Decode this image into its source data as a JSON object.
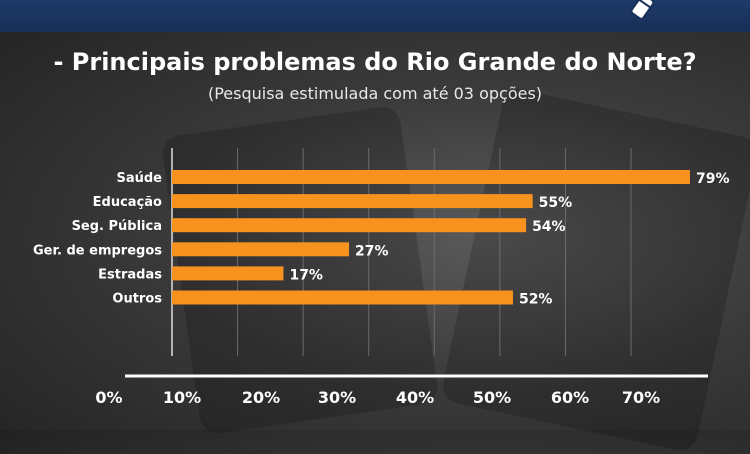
{
  "header": {
    "title": "- Principais problemas do Rio Grande do Norte?",
    "subtitle": "(Pesquisa estimulada com até 03 opções)"
  },
  "icons": {
    "top_right": "pen-icon"
  },
  "colors": {
    "bar": "#f7921e",
    "top_band": "#1e3a6a",
    "text": "#ffffff",
    "grid": "#6b6b6b"
  },
  "chart_data": {
    "type": "bar",
    "orientation": "horizontal",
    "title": "- Principais problemas do Rio Grande do Norte?",
    "subtitle": "(Pesquisa estimulada com até 03 opções)",
    "categories": [
      "Saúde",
      "Educação",
      "Seg. Pública",
      "Ger. de empregos",
      "Estradas",
      "Outros"
    ],
    "values": [
      79,
      55,
      54,
      27,
      17,
      52
    ],
    "value_labels": [
      "79%",
      "55%",
      "54%",
      "27%",
      "17%",
      "52%"
    ],
    "x_ticks": [
      "0%",
      "10%",
      "20%",
      "30%",
      "40%",
      "50%",
      "60%",
      "70%"
    ],
    "xlim": [
      0,
      79
    ],
    "grid": true,
    "legend": "none"
  }
}
